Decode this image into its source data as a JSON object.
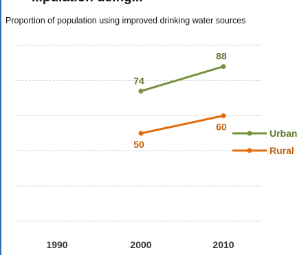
{
  "page": {
    "clipped_title": "...pulation using...",
    "subtitle": "Proportion of population using improved drinking water sources"
  },
  "colors": {
    "urban": "#76923c",
    "rural": "#e36c0a",
    "grid": "#b8bcc2",
    "border": "#2f6db5"
  },
  "chart_data": {
    "type": "line",
    "title": "",
    "subtitle": "Proportion of population using improved drinking water sources",
    "categories": [
      "1990",
      "2000",
      "2010"
    ],
    "ylim": [
      0,
      100
    ],
    "grid": true,
    "legend_placement": "right",
    "series": [
      {
        "name": "Urban",
        "color": "#76923c",
        "values": [
          null,
          74,
          88
        ],
        "labels": [
          "",
          "74",
          "88"
        ]
      },
      {
        "name": "Rural",
        "color": "#e36c0a",
        "values": [
          null,
          50,
          60
        ],
        "labels": [
          "",
          "50",
          "60"
        ]
      }
    ]
  }
}
